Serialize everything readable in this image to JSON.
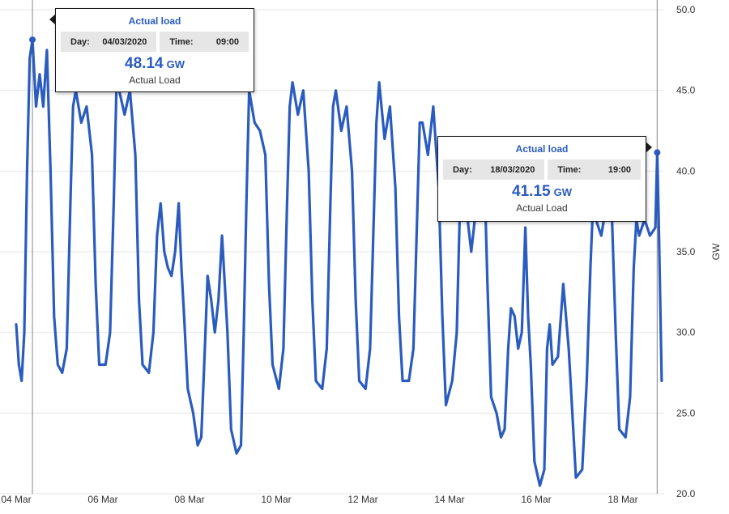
{
  "colors": {
    "line": "#2a5bbf",
    "grid": "#e6e6e6",
    "accent": "#2a5bbf"
  },
  "chart_data": {
    "type": "line",
    "title": "",
    "xlabel": "",
    "ylabel": "GW",
    "ylim": [
      20,
      50
    ],
    "y_ticks": [
      "20.0",
      "25.0",
      "30.0",
      "35.0",
      "40.0",
      "45.0",
      "50.0"
    ],
    "x_tick_labels": [
      "04 Mar",
      "06 Mar",
      "08 Mar",
      "10 Mar",
      "12 Mar",
      "14 Mar",
      "16 Mar",
      "18 Mar"
    ],
    "y_axis_position": "right",
    "grid": "horizontal",
    "series": [
      {
        "name": "Actual load",
        "x": [
          "04/03 00:00",
          "04/03 01:30",
          "04/03 03:00",
          "04/03 04:30",
          "04/03 06:00",
          "04/03 07:30",
          "04/03 09:00",
          "04/03 11:00",
          "04/03 13:00",
          "04/03 15:00",
          "04/03 17:00",
          "04/03 19:00",
          "04/03 21:00",
          "04/03 23:00",
          "05/03 01:30",
          "05/03 04:00",
          "05/03 06:00",
          "05/03 07:30",
          "05/03 09:00",
          "05/03 12:00",
          "05/03 15:00",
          "05/03 18:00",
          "05/03 20:00",
          "05/03 22:00",
          "06/03 01:30",
          "06/03 04:00",
          "06/03 06:00",
          "06/03 07:30",
          "06/03 09:00",
          "06/03 12:00",
          "06/03 15:00",
          "06/03 18:00",
          "06/03 20:00",
          "06/03 22:00",
          "07/03 01:30",
          "07/03 04:00",
          "07/03 06:00",
          "07/03 08:00",
          "07/03 10:00",
          "07/03 12:00",
          "07/03 14:00",
          "07/03 16:00",
          "07/03 18:00",
          "07/03 19:30",
          "07/03 21:00",
          "07/03 23:00",
          "08/03 02:00",
          "08/03 04:30",
          "08/03 06:30",
          "08/03 08:30",
          "08/03 10:00",
          "08/03 12:00",
          "08/03 14:00",
          "08/03 16:00",
          "08/03 18:00",
          "08/03 19:30",
          "08/03 21:00",
          "08/03 23:00",
          "09/03 02:00",
          "09/03 04:30",
          "09/03 06:00",
          "09/03 07:30",
          "09/03 09:00",
          "09/03 12:00",
          "09/03 15:00",
          "09/03 18:00",
          "09/03 20:00",
          "09/03 22:00",
          "10/03 01:30",
          "10/03 04:00",
          "10/03 06:00",
          "10/03 07:30",
          "10/03 09:00",
          "10/03 12:00",
          "10/03 15:00",
          "10/03 18:00",
          "10/03 20:00",
          "10/03 22:00",
          "11/03 01:30",
          "11/03 04:00",
          "11/03 06:00",
          "11/03 07:30",
          "11/03 09:00",
          "11/03 12:00",
          "11/03 15:00",
          "11/03 18:00",
          "11/03 20:00",
          "11/03 22:00",
          "12/03 01:30",
          "12/03 04:00",
          "12/03 06:00",
          "12/03 07:30",
          "12/03 09:00",
          "12/03 12:00",
          "12/03 15:00",
          "12/03 18:00",
          "12/03 20:00",
          "12/03 22:00",
          "13/03 01:30",
          "13/03 04:00",
          "13/03 06:00",
          "13/03 07:30",
          "13/03 09:00",
          "13/03 12:00",
          "13/03 15:00",
          "13/03 18:00",
          "13/03 20:00",
          "13/03 22:00",
          "14/03 01:30",
          "14/03 04:00",
          "14/03 06:00",
          "14/03 08:00",
          "14/03 10:00",
          "14/03 12:00",
          "14/03 14:00",
          "14/03 16:00",
          "14/03 18:00",
          "14/03 19:30",
          "14/03 21:00",
          "14/03 23:00",
          "15/03 02:00",
          "15/03 04:30",
          "15/03 06:30",
          "15/03 08:30",
          "15/03 10:00",
          "15/03 12:00",
          "15/03 14:00",
          "15/03 16:00",
          "15/03 18:00",
          "15/03 19:30",
          "15/03 21:00",
          "15/03 23:00",
          "16/03 02:00",
          "16/03 04:30",
          "16/03 06:00",
          "16/03 07:30",
          "16/03 09:00",
          "16/03 12:00",
          "16/03 15:00",
          "16/03 18:00",
          "16/03 20:00",
          "16/03 22:00",
          "17/03 01:30",
          "17/03 04:00",
          "17/03 06:00",
          "17/03 07:30",
          "17/03 09:00",
          "17/03 12:00",
          "17/03 15:00",
          "17/03 18:00",
          "17/03 20:00",
          "17/03 22:00",
          "18/03 01:30",
          "18/03 04:00",
          "18/03 06:00",
          "18/03 07:30",
          "18/03 09:00",
          "18/03 12:00",
          "18/03 15:00",
          "18/03 18:00",
          "18/03 19:00",
          "18/03 20:00",
          "18/03 21:30"
        ],
        "values": [
          30.5,
          28,
          27,
          30,
          40,
          47,
          48.14,
          44,
          46,
          44,
          47.5,
          40,
          31,
          28,
          27.5,
          29,
          38,
          44,
          45,
          43,
          44,
          41,
          33,
          28,
          28,
          30,
          38,
          45,
          45,
          43.5,
          45,
          41,
          32,
          28,
          27.5,
          30,
          36,
          38,
          35,
          34,
          33.5,
          35,
          38,
          34,
          31,
          26.5,
          25,
          23,
          23.5,
          29,
          33.5,
          32,
          30,
          32,
          36,
          33,
          30,
          24,
          22.5,
          23,
          30,
          38,
          45,
          43,
          42.5,
          41,
          33,
          28,
          26.5,
          29,
          38,
          44,
          45.5,
          43.5,
          45,
          40,
          32,
          27,
          26.5,
          29,
          38,
          44,
          45,
          42.5,
          44,
          40,
          32,
          27,
          26.5,
          29,
          37,
          43,
          45.5,
          42,
          44,
          39,
          31,
          27,
          27,
          29,
          37,
          43,
          43,
          41,
          44,
          39,
          31,
          25.5,
          27,
          30,
          39,
          40,
          37,
          35,
          37,
          40,
          42,
          39,
          33,
          26,
          25,
          23.5,
          24,
          29,
          31.5,
          31,
          29,
          30,
          36.5,
          31,
          28,
          22,
          20.5,
          21.5,
          29,
          30.5,
          28,
          28.5,
          33,
          29,
          25,
          21,
          21.5,
          27,
          34,
          38,
          37,
          36,
          38,
          37,
          30,
          24,
          23.5,
          26,
          34,
          37,
          36,
          37,
          36,
          36.5,
          41.15,
          36,
          27
        ]
      }
    ]
  },
  "tooltips": [
    {
      "title": "Actual load",
      "day_label": "Day:",
      "day": "04/03/2020",
      "time_label": "Time:",
      "time": "09:00",
      "value": "48.14",
      "unit": "GW",
      "subtitle": "Actual Load"
    },
    {
      "title": "Actual load",
      "day_label": "Day:",
      "day": "18/03/2020",
      "time_label": "Time:",
      "time": "19:00",
      "value": "41.15",
      "unit": "GW",
      "subtitle": "Actual Load"
    }
  ],
  "crosshair_times": [
    "04/03 09:00",
    "18/03 19:00"
  ]
}
